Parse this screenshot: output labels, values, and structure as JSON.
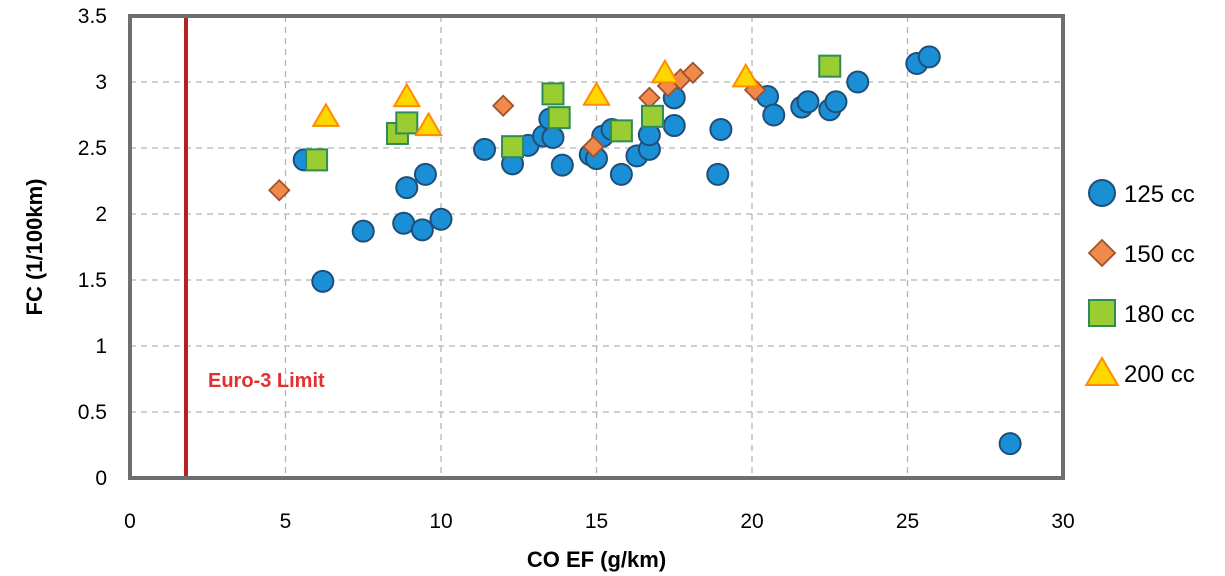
{
  "chart_data": {
    "type": "scatter",
    "xlabel": "CO EF (g/km)",
    "ylabel": "FC (1/100km)",
    "xlim": [
      0,
      30
    ],
    "ylim": [
      0,
      3.5
    ],
    "x_ticks": [
      "0",
      "5",
      "10",
      "15",
      "20",
      "25",
      "30"
    ],
    "y_ticks": [
      "0",
      "0.5",
      "1",
      "1.5",
      "2",
      "2.5",
      "3",
      "3.5"
    ],
    "grid": "dashed",
    "legend_position": "right",
    "reference_line": {
      "x": 1.8,
      "label": "Euro-3 Limit",
      "color": "#b22222",
      "label_color": "#e03030"
    },
    "series": [
      {
        "name": "125 cc",
        "marker": "circle",
        "fill": "#1a8fd6",
        "stroke": "#1f4e79",
        "points": [
          [
            5.6,
            2.41
          ],
          [
            6.2,
            1.49
          ],
          [
            7.5,
            1.87
          ],
          [
            8.8,
            1.93
          ],
          [
            8.9,
            2.2
          ],
          [
            9.4,
            1.88
          ],
          [
            9.5,
            2.3
          ],
          [
            10.0,
            1.96
          ],
          [
            11.4,
            2.49
          ],
          [
            12.3,
            2.38
          ],
          [
            12.8,
            2.52
          ],
          [
            13.3,
            2.59
          ],
          [
            13.5,
            2.72
          ],
          [
            13.6,
            2.58
          ],
          [
            13.9,
            2.37
          ],
          [
            14.8,
            2.45
          ],
          [
            15.0,
            2.42
          ],
          [
            15.2,
            2.59
          ],
          [
            15.5,
            2.64
          ],
          [
            15.8,
            2.3
          ],
          [
            16.3,
            2.44
          ],
          [
            16.7,
            2.49
          ],
          [
            16.7,
            2.6
          ],
          [
            17.5,
            2.67
          ],
          [
            17.5,
            2.88
          ],
          [
            18.9,
            2.3
          ],
          [
            19.0,
            2.64
          ],
          [
            20.5,
            2.89
          ],
          [
            20.7,
            2.75
          ],
          [
            21.6,
            2.81
          ],
          [
            21.8,
            2.85
          ],
          [
            22.5,
            2.79
          ],
          [
            22.7,
            2.85
          ],
          [
            23.4,
            3.0
          ],
          [
            25.3,
            3.14
          ],
          [
            25.7,
            3.19
          ],
          [
            28.3,
            0.26
          ]
        ]
      },
      {
        "name": "150 cc",
        "marker": "diamond",
        "fill": "#f08a4b",
        "stroke": "#a0522d",
        "points": [
          [
            4.8,
            2.18
          ],
          [
            12.0,
            2.82
          ],
          [
            14.9,
            2.51
          ],
          [
            16.7,
            2.88
          ],
          [
            17.3,
            2.97
          ],
          [
            17.7,
            3.02
          ],
          [
            18.1,
            3.07
          ],
          [
            20.1,
            2.94
          ]
        ]
      },
      {
        "name": "180 cc",
        "marker": "square",
        "fill": "#9acd32",
        "stroke": "#2e8b57",
        "points": [
          [
            6.0,
            2.41
          ],
          [
            8.6,
            2.61
          ],
          [
            8.9,
            2.69
          ],
          [
            12.3,
            2.51
          ],
          [
            13.6,
            2.91
          ],
          [
            13.8,
            2.73
          ],
          [
            15.8,
            2.63
          ],
          [
            16.8,
            2.74
          ],
          [
            22.5,
            3.12
          ]
        ]
      },
      {
        "name": "200 cc",
        "marker": "triangle",
        "fill": "#ffd700",
        "stroke": "#ff8c00",
        "points": [
          [
            6.3,
            2.74
          ],
          [
            8.9,
            2.89
          ],
          [
            9.6,
            2.67
          ],
          [
            15.0,
            2.9
          ],
          [
            17.2,
            3.07
          ],
          [
            19.8,
            3.04
          ]
        ]
      }
    ]
  }
}
